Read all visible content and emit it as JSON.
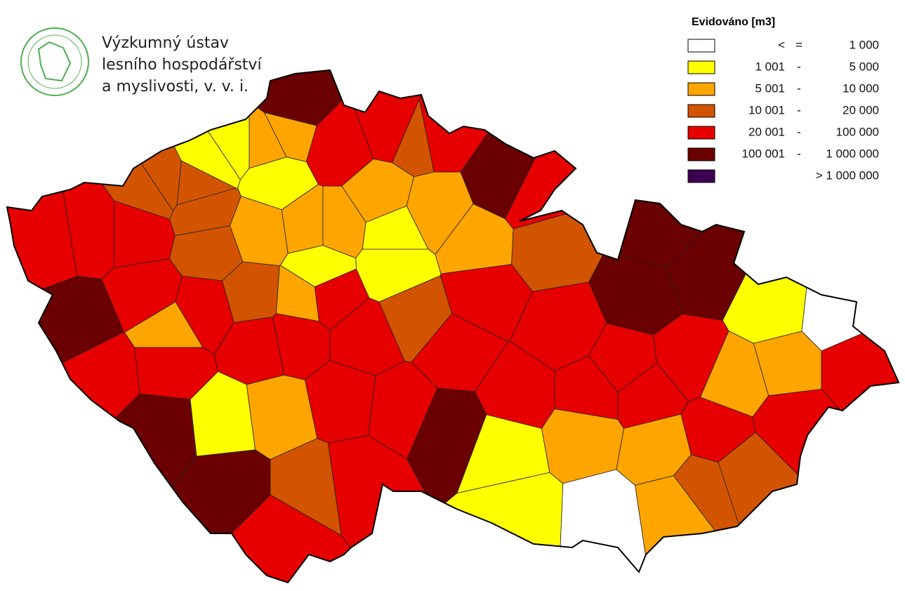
{
  "header": {
    "institute": [
      "Výzkumný ústav",
      "lesního hospodářství",
      "a myslivosti, v. v. i."
    ]
  },
  "legend": {
    "title": "Evidováno [m3]",
    "items": [
      {
        "color": "#ffffff",
        "from": "<",
        "sep": "=",
        "to": "1 000"
      },
      {
        "color": "#ffff00",
        "from": "1 001",
        "sep": "-",
        "to": "5 000"
      },
      {
        "color": "#ffa500",
        "from": "5 001",
        "sep": "-",
        "to": "10 000"
      },
      {
        "color": "#d35400",
        "from": "10 001",
        "sep": "-",
        "to": "20 000"
      },
      {
        "color": "#e60000",
        "from": "20 001",
        "sep": "-",
        "to": "100 000"
      },
      {
        "color": "#6b0000",
        "from": "100 001",
        "sep": "-",
        "to": "1 000 000"
      },
      {
        "color": "#3d0050",
        "to": "> 1 000 000"
      }
    ]
  }
}
